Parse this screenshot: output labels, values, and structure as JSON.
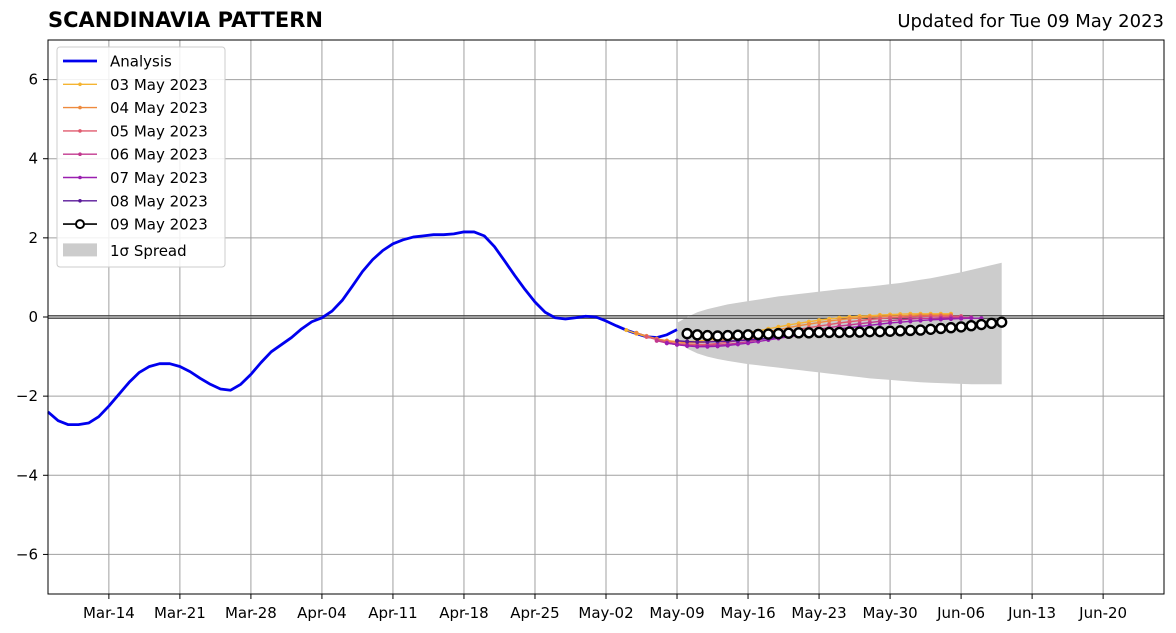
{
  "title": "SCANDINAVIA PATTERN",
  "subtitle": "Updated for Tue 09 May 2023",
  "chart_data": {
    "type": "line",
    "x_axis": {
      "type": "date",
      "range": [
        "2023-03-08",
        "2023-06-26"
      ],
      "tick_labels": [
        "Mar-14",
        "Mar-21",
        "Mar-28",
        "Apr-04",
        "Apr-11",
        "Apr-18",
        "Apr-25",
        "May-02",
        "May-09",
        "May-16",
        "May-23",
        "May-30",
        "Jun-06",
        "Jun-13",
        "Jun-20"
      ],
      "tick_dates": [
        "2023-03-14",
        "2023-03-21",
        "2023-03-28",
        "2023-04-04",
        "2023-04-11",
        "2023-04-18",
        "2023-04-25",
        "2023-05-02",
        "2023-05-09",
        "2023-05-16",
        "2023-05-23",
        "2023-05-30",
        "2023-06-06",
        "2023-06-13",
        "2023-06-20"
      ]
    },
    "y_axis": {
      "range": [
        -7,
        7
      ],
      "ticks": [
        -6,
        -4,
        -2,
        0,
        2,
        4,
        6
      ],
      "tick_labels": [
        "−6",
        "−4",
        "−2",
        "0",
        "2",
        "4",
        "6"
      ]
    },
    "grid": true,
    "zero_line": true,
    "legend": {
      "position": "upper-left"
    },
    "analysis": {
      "name": "Analysis",
      "color": "#0000ee",
      "dates": [
        "2023-03-08",
        "2023-03-09",
        "2023-03-10",
        "2023-03-11",
        "2023-03-12",
        "2023-03-13",
        "2023-03-14",
        "2023-03-15",
        "2023-03-16",
        "2023-03-17",
        "2023-03-18",
        "2023-03-19",
        "2023-03-20",
        "2023-03-21",
        "2023-03-22",
        "2023-03-23",
        "2023-03-24",
        "2023-03-25",
        "2023-03-26",
        "2023-03-27",
        "2023-03-28",
        "2023-03-29",
        "2023-03-30",
        "2023-03-31",
        "2023-04-01",
        "2023-04-02",
        "2023-04-03",
        "2023-04-04",
        "2023-04-05",
        "2023-04-06",
        "2023-04-07",
        "2023-04-08",
        "2023-04-09",
        "2023-04-10",
        "2023-04-11",
        "2023-04-12",
        "2023-04-13",
        "2023-04-14",
        "2023-04-15",
        "2023-04-16",
        "2023-04-17",
        "2023-04-18",
        "2023-04-19",
        "2023-04-20",
        "2023-04-21",
        "2023-04-22",
        "2023-04-23",
        "2023-04-24",
        "2023-04-25",
        "2023-04-26",
        "2023-04-27",
        "2023-04-28",
        "2023-04-29",
        "2023-04-30",
        "2023-05-01",
        "2023-05-02",
        "2023-05-03",
        "2023-05-04",
        "2023-05-05",
        "2023-05-06",
        "2023-05-07",
        "2023-05-08",
        "2023-05-09"
      ],
      "values": [
        -2.4,
        -2.62,
        -2.72,
        -2.72,
        -2.68,
        -2.52,
        -2.25,
        -1.95,
        -1.65,
        -1.4,
        -1.25,
        -1.18,
        -1.18,
        -1.25,
        -1.38,
        -1.55,
        -1.7,
        -1.82,
        -1.85,
        -1.7,
        -1.45,
        -1.15,
        -0.88,
        -0.7,
        -0.52,
        -0.3,
        -0.12,
        -0.02,
        0.15,
        0.42,
        0.78,
        1.15,
        1.45,
        1.68,
        1.85,
        1.95,
        2.02,
        2.05,
        2.08,
        2.08,
        2.1,
        2.15,
        2.15,
        2.05,
        1.78,
        1.42,
        1.05,
        0.7,
        0.38,
        0.12,
        -0.02,
        -0.05,
        -0.02,
        0.02,
        0.0,
        -0.1,
        -0.22,
        -0.33,
        -0.42,
        -0.5,
        -0.52,
        -0.45,
        -0.32
      ]
    },
    "forecasts": [
      {
        "name": "03 May 2023",
        "color": "#f5b431",
        "start": "2023-05-04",
        "end": "2023-06-05",
        "values": [
          -0.33,
          -0.42,
          -0.5,
          -0.56,
          -0.6,
          -0.62,
          -0.62,
          -0.61,
          -0.58,
          -0.54,
          -0.5,
          -0.45,
          -0.4,
          -0.35,
          -0.3,
          -0.25,
          -0.2,
          -0.16,
          -0.12,
          -0.08,
          -0.05,
          -0.02,
          0.0,
          0.02,
          0.03,
          0.05,
          0.06,
          0.07,
          0.08,
          0.08,
          0.08,
          0.08,
          0.08
        ]
      },
      {
        "name": "04 May 2023",
        "color": "#ee8a3e",
        "start": "2023-05-05",
        "end": "2023-06-05",
        "values": [
          -0.4,
          -0.48,
          -0.55,
          -0.6,
          -0.63,
          -0.65,
          -0.65,
          -0.63,
          -0.6,
          -0.56,
          -0.52,
          -0.47,
          -0.42,
          -0.37,
          -0.32,
          -0.27,
          -0.22,
          -0.18,
          -0.14,
          -0.1,
          -0.07,
          -0.04,
          -0.02,
          0.0,
          0.01,
          0.02,
          0.03,
          0.04,
          0.05,
          0.05,
          0.05,
          0.05
        ]
      },
      {
        "name": "05 May 2023",
        "color": "#e05a6e",
        "start": "2023-05-06",
        "end": "2023-06-06",
        "values": [
          -0.5,
          -0.57,
          -0.63,
          -0.67,
          -0.69,
          -0.7,
          -0.69,
          -0.67,
          -0.64,
          -0.6,
          -0.56,
          -0.51,
          -0.46,
          -0.41,
          -0.36,
          -0.31,
          -0.27,
          -0.23,
          -0.19,
          -0.15,
          -0.12,
          -0.09,
          -0.06,
          -0.04,
          -0.02,
          -0.01,
          0.0,
          0.01,
          0.02,
          0.02,
          0.02,
          0.02
        ]
      },
      {
        "name": "06 May 2023",
        "color": "#c2388f",
        "start": "2023-05-07",
        "end": "2023-06-07",
        "values": [
          -0.6,
          -0.66,
          -0.7,
          -0.72,
          -0.73,
          -0.72,
          -0.71,
          -0.69,
          -0.66,
          -0.62,
          -0.58,
          -0.53,
          -0.49,
          -0.44,
          -0.4,
          -0.35,
          -0.31,
          -0.27,
          -0.23,
          -0.2,
          -0.17,
          -0.14,
          -0.11,
          -0.09,
          -0.07,
          -0.05,
          -0.04,
          -0.03,
          -0.02,
          -0.01,
          -0.01,
          -0.01
        ]
      },
      {
        "name": "07 May 2023",
        "color": "#9a1fb0",
        "start": "2023-05-08",
        "end": "2023-06-08",
        "values": [
          -0.66,
          -0.7,
          -0.73,
          -0.75,
          -0.75,
          -0.74,
          -0.72,
          -0.69,
          -0.66,
          -0.62,
          -0.58,
          -0.54,
          -0.5,
          -0.46,
          -0.42,
          -0.38,
          -0.34,
          -0.3,
          -0.27,
          -0.24,
          -0.21,
          -0.18,
          -0.15,
          -0.13,
          -0.11,
          -0.09,
          -0.07,
          -0.06,
          -0.05,
          -0.04,
          -0.03,
          -0.03
        ]
      },
      {
        "name": "08 May 2023",
        "color": "#5a189a",
        "start": "2023-05-09",
        "end": "2023-05-21",
        "values": [
          -0.6,
          -0.62,
          -0.63,
          -0.63,
          -0.62,
          -0.61,
          -0.6,
          -0.58,
          -0.56,
          -0.54,
          -0.51,
          -0.48,
          -0.45
        ]
      },
      {
        "name": "09 May 2023",
        "color": "#000000",
        "start": "2023-05-10",
        "end": "2023-06-10",
        "marker": "open-circle",
        "values": [
          -0.42,
          -0.45,
          -0.47,
          -0.48,
          -0.47,
          -0.46,
          -0.45,
          -0.44,
          -0.43,
          -0.42,
          -0.41,
          -0.4,
          -0.4,
          -0.39,
          -0.39,
          -0.39,
          -0.38,
          -0.38,
          -0.37,
          -0.37,
          -0.36,
          -0.35,
          -0.34,
          -0.33,
          -0.31,
          -0.29,
          -0.27,
          -0.25,
          -0.22,
          -0.19,
          -0.16,
          -0.13
        ]
      }
    ],
    "spread": {
      "name": "1σ Spread",
      "color": "#cccccc",
      "start": "2023-05-09",
      "end": "2023-06-10",
      "upper": [
        -0.15,
        0.0,
        0.12,
        0.2,
        0.26,
        0.32,
        0.36,
        0.4,
        0.44,
        0.48,
        0.52,
        0.55,
        0.58,
        0.61,
        0.64,
        0.67,
        0.7,
        0.72,
        0.75,
        0.77,
        0.8,
        0.83,
        0.86,
        0.9,
        0.94,
        0.98,
        1.03,
        1.08,
        1.13,
        1.19,
        1.25,
        1.31,
        1.37
      ],
      "lower": [
        -0.55,
        -0.8,
        -0.92,
        -1.0,
        -1.06,
        -1.11,
        -1.15,
        -1.19,
        -1.22,
        -1.25,
        -1.28,
        -1.31,
        -1.34,
        -1.37,
        -1.4,
        -1.43,
        -1.46,
        -1.49,
        -1.52,
        -1.55,
        -1.57,
        -1.59,
        -1.61,
        -1.63,
        -1.65,
        -1.66,
        -1.67,
        -1.68,
        -1.69,
        -1.7,
        -1.7,
        -1.7,
        -1.7
      ]
    }
  }
}
